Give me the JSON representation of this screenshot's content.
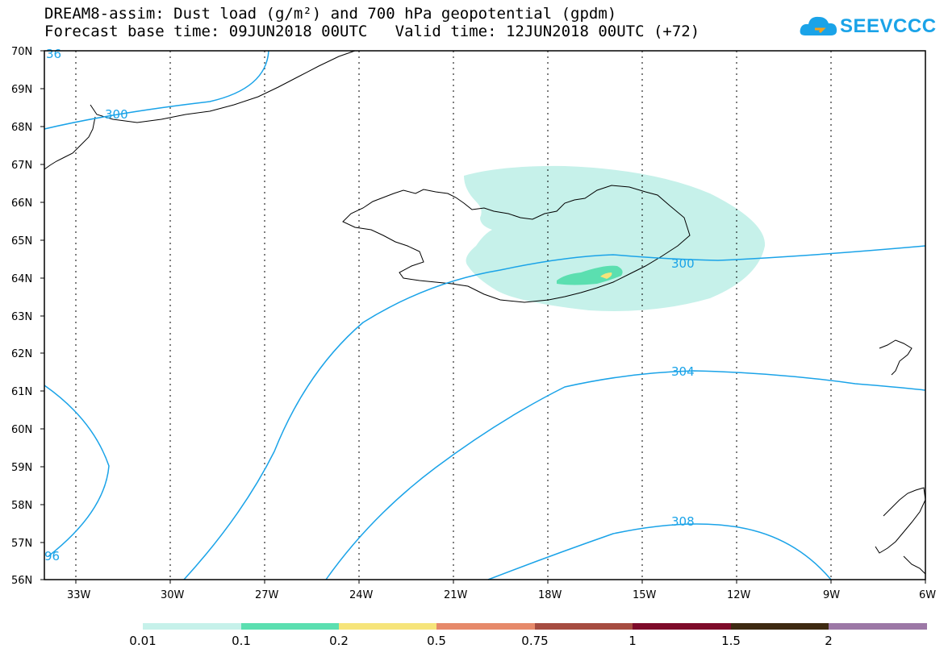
{
  "header": {
    "line1": "DREAM8-assim: Dust load (g/m²) and 700 hPa geopotential (gpdm)",
    "line2": "Forecast base time: 09JUN2018 00UTC   Valid time: 12JUN2018 00UTC (+72)"
  },
  "logo": {
    "text": "SEEVCCC",
    "color": "#1aa3e8"
  },
  "map": {
    "lat_labels": [
      "70N",
      "69N",
      "68N",
      "67N",
      "66N",
      "65N",
      "64N",
      "63N",
      "62N",
      "61N",
      "60N",
      "59N",
      "58N",
      "57N",
      "56N"
    ],
    "lon_labels": [
      "33W",
      "30W",
      "27W",
      "24W",
      "21W",
      "18W",
      "15W",
      "12W",
      "9W",
      "6W"
    ],
    "contour_labels": [
      "300",
      "300",
      "304",
      "308",
      "96",
      "36"
    ],
    "contour_color": "#1aa3e8"
  },
  "colorbar": {
    "colors": [
      "#c6f1ea",
      "#5bdfb0",
      "#f6e47a",
      "#e6896a",
      "#a64c40",
      "#7e0b2a",
      "#3e2a12",
      "#9c78a6"
    ],
    "labels": [
      "0.01",
      "0.1",
      "0.2",
      "0.5",
      "0.75",
      "1",
      "1.5",
      "2"
    ]
  }
}
